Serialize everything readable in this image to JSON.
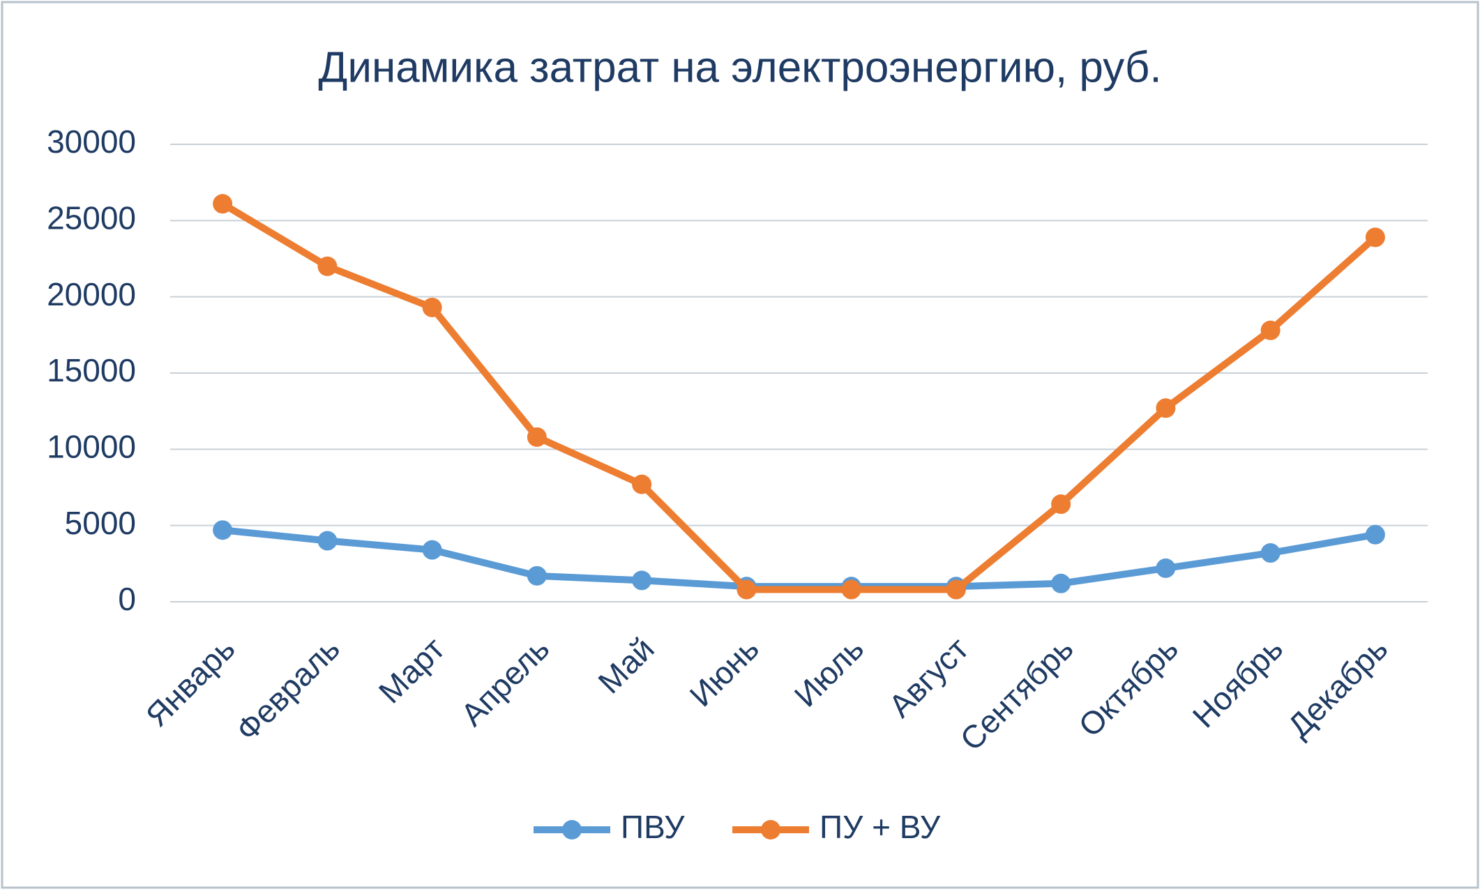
{
  "chart_data": {
    "type": "line",
    "title": "Динамика затрат на электроэнергию, руб.",
    "categories": [
      "Январь",
      "Февраль",
      "Март",
      "Апрель",
      "Май",
      "Июнь",
      "Июль",
      "Август",
      "Сентябрь",
      "Октябрь",
      "Ноябрь",
      "Декабрь"
    ],
    "series": [
      {
        "name": "ПВУ",
        "color": "#5b9bd5",
        "values": [
          4700,
          4000,
          3400,
          1700,
          1400,
          1000,
          1000,
          1000,
          1200,
          2200,
          3200,
          4400
        ]
      },
      {
        "name": "ПУ + ВУ",
        "color": "#ed7d31",
        "values": [
          26100,
          22000,
          19300,
          10800,
          7700,
          800,
          800,
          800,
          6400,
          12700,
          17800,
          23900
        ]
      }
    ],
    "ylim": [
      0,
      30000
    ],
    "yticks": [
      0,
      5000,
      10000,
      15000,
      20000,
      25000,
      30000
    ],
    "grid": true,
    "legend": "bottom"
  }
}
